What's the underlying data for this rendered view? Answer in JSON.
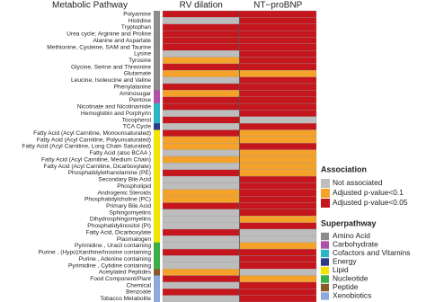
{
  "title": "Metabolic Pathway",
  "columns": [
    "RV dilation",
    "NT−proBNP"
  ],
  "association": {
    "title": "Association",
    "levels": [
      {
        "name": "Not associated",
        "color": "#bdbdbd"
      },
      {
        "name": "Adjusted p-value<0.1",
        "color": "#f5a22a"
      },
      {
        "name": "Adjusted p-value<0.05",
        "color": "#c4161c"
      }
    ]
  },
  "superpathway": {
    "title": "Superpathway",
    "levels": [
      {
        "name": "Amino Acid",
        "color": "#8c8c8c"
      },
      {
        "name": "Carbohydrate",
        "color": "#b24fa6"
      },
      {
        "name": "Cofactors and Vitamins",
        "color": "#2bb5c4"
      },
      {
        "name": "Energy",
        "color": "#2e3a8c"
      },
      {
        "name": "Lipid",
        "color": "#f2e600"
      },
      {
        "name": "Nucleotide",
        "color": "#3aae49"
      },
      {
        "name": "Peptide",
        "color": "#8b5a2b"
      },
      {
        "name": "Xenobiotics",
        "color": "#8ea9db"
      }
    ]
  },
  "rows": [
    {
      "label": "Polyamine",
      "superpathway": "Amino Acid",
      "cells": [
        "Adjusted p-value<0.05",
        "Adjusted p-value<0.05"
      ]
    },
    {
      "label": "Histidine",
      "superpathway": "Amino Acid",
      "cells": [
        "Not associated",
        "Adjusted p-value<0.05"
      ]
    },
    {
      "label": "Tryptophan",
      "superpathway": "Amino Acid",
      "cells": [
        "Adjusted p-value<0.05",
        "Adjusted p-value<0.05"
      ]
    },
    {
      "label": "Urea cycle; Arginine and Proline",
      "superpathway": "Amino Acid",
      "cells": [
        "Adjusted p-value<0.05",
        "Adjusted p-value<0.05"
      ]
    },
    {
      "label": "Alanine and Aspartate",
      "superpathway": "Amino Acid",
      "cells": [
        "Adjusted p-value<0.05",
        "Adjusted p-value<0.05"
      ]
    },
    {
      "label": "Methionine, Cysteine, SAM and Taurine",
      "superpathway": "Amino Acid",
      "cells": [
        "Adjusted p-value<0.05",
        "Adjusted p-value<0.05"
      ]
    },
    {
      "label": "Lysine",
      "superpathway": "Amino Acid",
      "cells": [
        "Not associated",
        "Adjusted p-value<0.05"
      ]
    },
    {
      "label": "Tyrosine",
      "superpathway": "Amino Acid",
      "cells": [
        "Adjusted p-value<0.1",
        "Adjusted p-value<0.05"
      ]
    },
    {
      "label": "Glycine, Serine and Threonine",
      "superpathway": "Amino Acid",
      "cells": [
        "Adjusted p-value<0.05",
        "Adjusted p-value<0.05"
      ]
    },
    {
      "label": "Glutamate",
      "superpathway": "Amino Acid",
      "cells": [
        "Adjusted p-value<0.1",
        "Adjusted p-value<0.1"
      ]
    },
    {
      "label": "Leucine, Isoleucine and Valine",
      "superpathway": "Amino Acid",
      "cells": [
        "Not associated",
        "Adjusted p-value<0.05"
      ]
    },
    {
      "label": "Phenylalanine",
      "superpathway": "Amino Acid",
      "cells": [
        "Adjusted p-value<0.05",
        "Adjusted p-value<0.05"
      ]
    },
    {
      "label": "Aminosugar",
      "superpathway": "Carbohydrate",
      "cells": [
        "Adjusted p-value<0.1",
        "Adjusted p-value<0.05"
      ]
    },
    {
      "label": "Pentose",
      "superpathway": "Carbohydrate",
      "cells": [
        "Adjusted p-value<0.05",
        "Adjusted p-value<0.05"
      ]
    },
    {
      "label": "Nicotinate and Nicotinamide",
      "superpathway": "Cofactors and Vitamins",
      "cells": [
        "Adjusted p-value<0.05",
        "Adjusted p-value<0.05"
      ]
    },
    {
      "label": "Hemoglobin and Porphyrin",
      "superpathway": "Cofactors and Vitamins",
      "cells": [
        "Not associated",
        "Adjusted p-value<0.05"
      ]
    },
    {
      "label": "Tocopherol",
      "superpathway": "Cofactors and Vitamins",
      "cells": [
        "Adjusted p-value<0.05",
        "Not associated"
      ]
    },
    {
      "label": "TCA Cycle",
      "superpathway": "Energy",
      "cells": [
        "Not associated",
        "Adjusted p-value<0.05"
      ]
    },
    {
      "label": "Fatty Acid  (Acyl Carnitine, Monounsaturated)",
      "superpathway": "Lipid",
      "cells": [
        "Adjusted p-value<0.05",
        "Adjusted p-value<0.1"
      ]
    },
    {
      "label": "Fatty Acid  (Acyl Carnitine, Polyunsaturated)",
      "superpathway": "Lipid",
      "cells": [
        "Adjusted p-value<0.1",
        "Adjusted p-value<0.1"
      ]
    },
    {
      "label": "Fatty Acid  (Acyl Carnitine, Long Chain Saturated)",
      "superpathway": "Lipid",
      "cells": [
        "Adjusted p-value<0.1",
        "Adjusted p-value<0.05"
      ]
    },
    {
      "label": "Fatty Acid  (also BCAA )",
      "superpathway": "Lipid",
      "cells": [
        "Not associated",
        "Adjusted p-value<0.1"
      ]
    },
    {
      "label": "Fatty Acid  (Acyl Carnitine, Medium Chain)",
      "superpathway": "Lipid",
      "cells": [
        "Adjusted p-value<0.1",
        "Adjusted p-value<0.1"
      ]
    },
    {
      "label": "Fatty Acid  (Acyl Carnitine, Dicarboxylate)",
      "superpathway": "Lipid",
      "cells": [
        "Not associated",
        "Adjusted p-value<0.1"
      ]
    },
    {
      "label": "Phosphatidylethanolamine (PE)",
      "superpathway": "Lipid",
      "cells": [
        "Adjusted p-value<0.05",
        "Adjusted p-value<0.1"
      ]
    },
    {
      "label": "Secondary Bile Acid",
      "superpathway": "Lipid",
      "cells": [
        "Not associated",
        "Adjusted p-value<0.05"
      ]
    },
    {
      "label": "Phospholipid",
      "superpathway": "Lipid",
      "cells": [
        "Not associated",
        "Adjusted p-value<0.05"
      ]
    },
    {
      "label": "Androgenic Steroids",
      "superpathway": "Lipid",
      "cells": [
        "Adjusted p-value<0.1",
        "Adjusted p-value<0.05"
      ]
    },
    {
      "label": "Phosphatidylcholine (PC)",
      "superpathway": "Lipid",
      "cells": [
        "Adjusted p-value<0.1",
        "Adjusted p-value<0.05"
      ]
    },
    {
      "label": "Primary Bile Acid",
      "superpathway": "Lipid",
      "cells": [
        "Adjusted p-value<0.05",
        "Adjusted p-value<0.05"
      ]
    },
    {
      "label": "Sphingomyelins",
      "superpathway": "Lipid",
      "cells": [
        "Not associated",
        "Adjusted p-value<0.05"
      ]
    },
    {
      "label": "Dihydrosphingomyelins",
      "superpathway": "Lipid",
      "cells": [
        "Not associated",
        "Adjusted p-value<0.1"
      ]
    },
    {
      "label": "Phosphatidylinositol (PI)",
      "superpathway": "Lipid",
      "cells": [
        "Not associated",
        "Adjusted p-value<0.05"
      ]
    },
    {
      "label": "Fatty Acid, Dicarboxylate",
      "superpathway": "Lipid",
      "cells": [
        "Adjusted p-value<0.05",
        "Not associated"
      ]
    },
    {
      "label": "Plasmalogen",
      "superpathway": "Lipid",
      "cells": [
        "Not associated",
        "Not associated"
      ]
    },
    {
      "label": "Pyrimidine , Uracil containing",
      "superpathway": "Nucleotide",
      "cells": [
        "Not associated",
        "Adjusted p-value<0.1"
      ]
    },
    {
      "label": "Purine , (Hypo)Xanthine/Inosine containing",
      "superpathway": "Nucleotide",
      "cells": [
        "Adjusted p-value<0.05",
        "Adjusted p-value<0.05"
      ]
    },
    {
      "label": "Purine , Adenine containing",
      "superpathway": "Nucleotide",
      "cells": [
        "Not associated",
        "Adjusted p-value<0.05"
      ]
    },
    {
      "label": "Pyrimidine , Cytidine containing",
      "superpathway": "Nucleotide",
      "cells": [
        "Not associated",
        "Adjusted p-value<0.05"
      ]
    },
    {
      "label": "Acetylated Peptides",
      "superpathway": "Peptide",
      "cells": [
        "Adjusted p-value<0.1",
        "Not associated"
      ]
    },
    {
      "label": "Food Component/Plant",
      "superpathway": "Xenobiotics",
      "cells": [
        "Adjusted p-value<0.05",
        "Adjusted p-value<0.1"
      ]
    },
    {
      "label": "Chemical",
      "superpathway": "Xenobiotics",
      "cells": [
        "Not associated",
        "Adjusted p-value<0.05"
      ]
    },
    {
      "label": "Benzoate",
      "superpathway": "Xenobiotics",
      "cells": [
        "Adjusted p-value<0.05",
        "Adjusted p-value<0.05"
      ]
    },
    {
      "label": "Tobacco Metabolite",
      "superpathway": "Xenobiotics",
      "cells": [
        "Not associated",
        "Adjusted p-value<0.05"
      ]
    }
  ]
}
